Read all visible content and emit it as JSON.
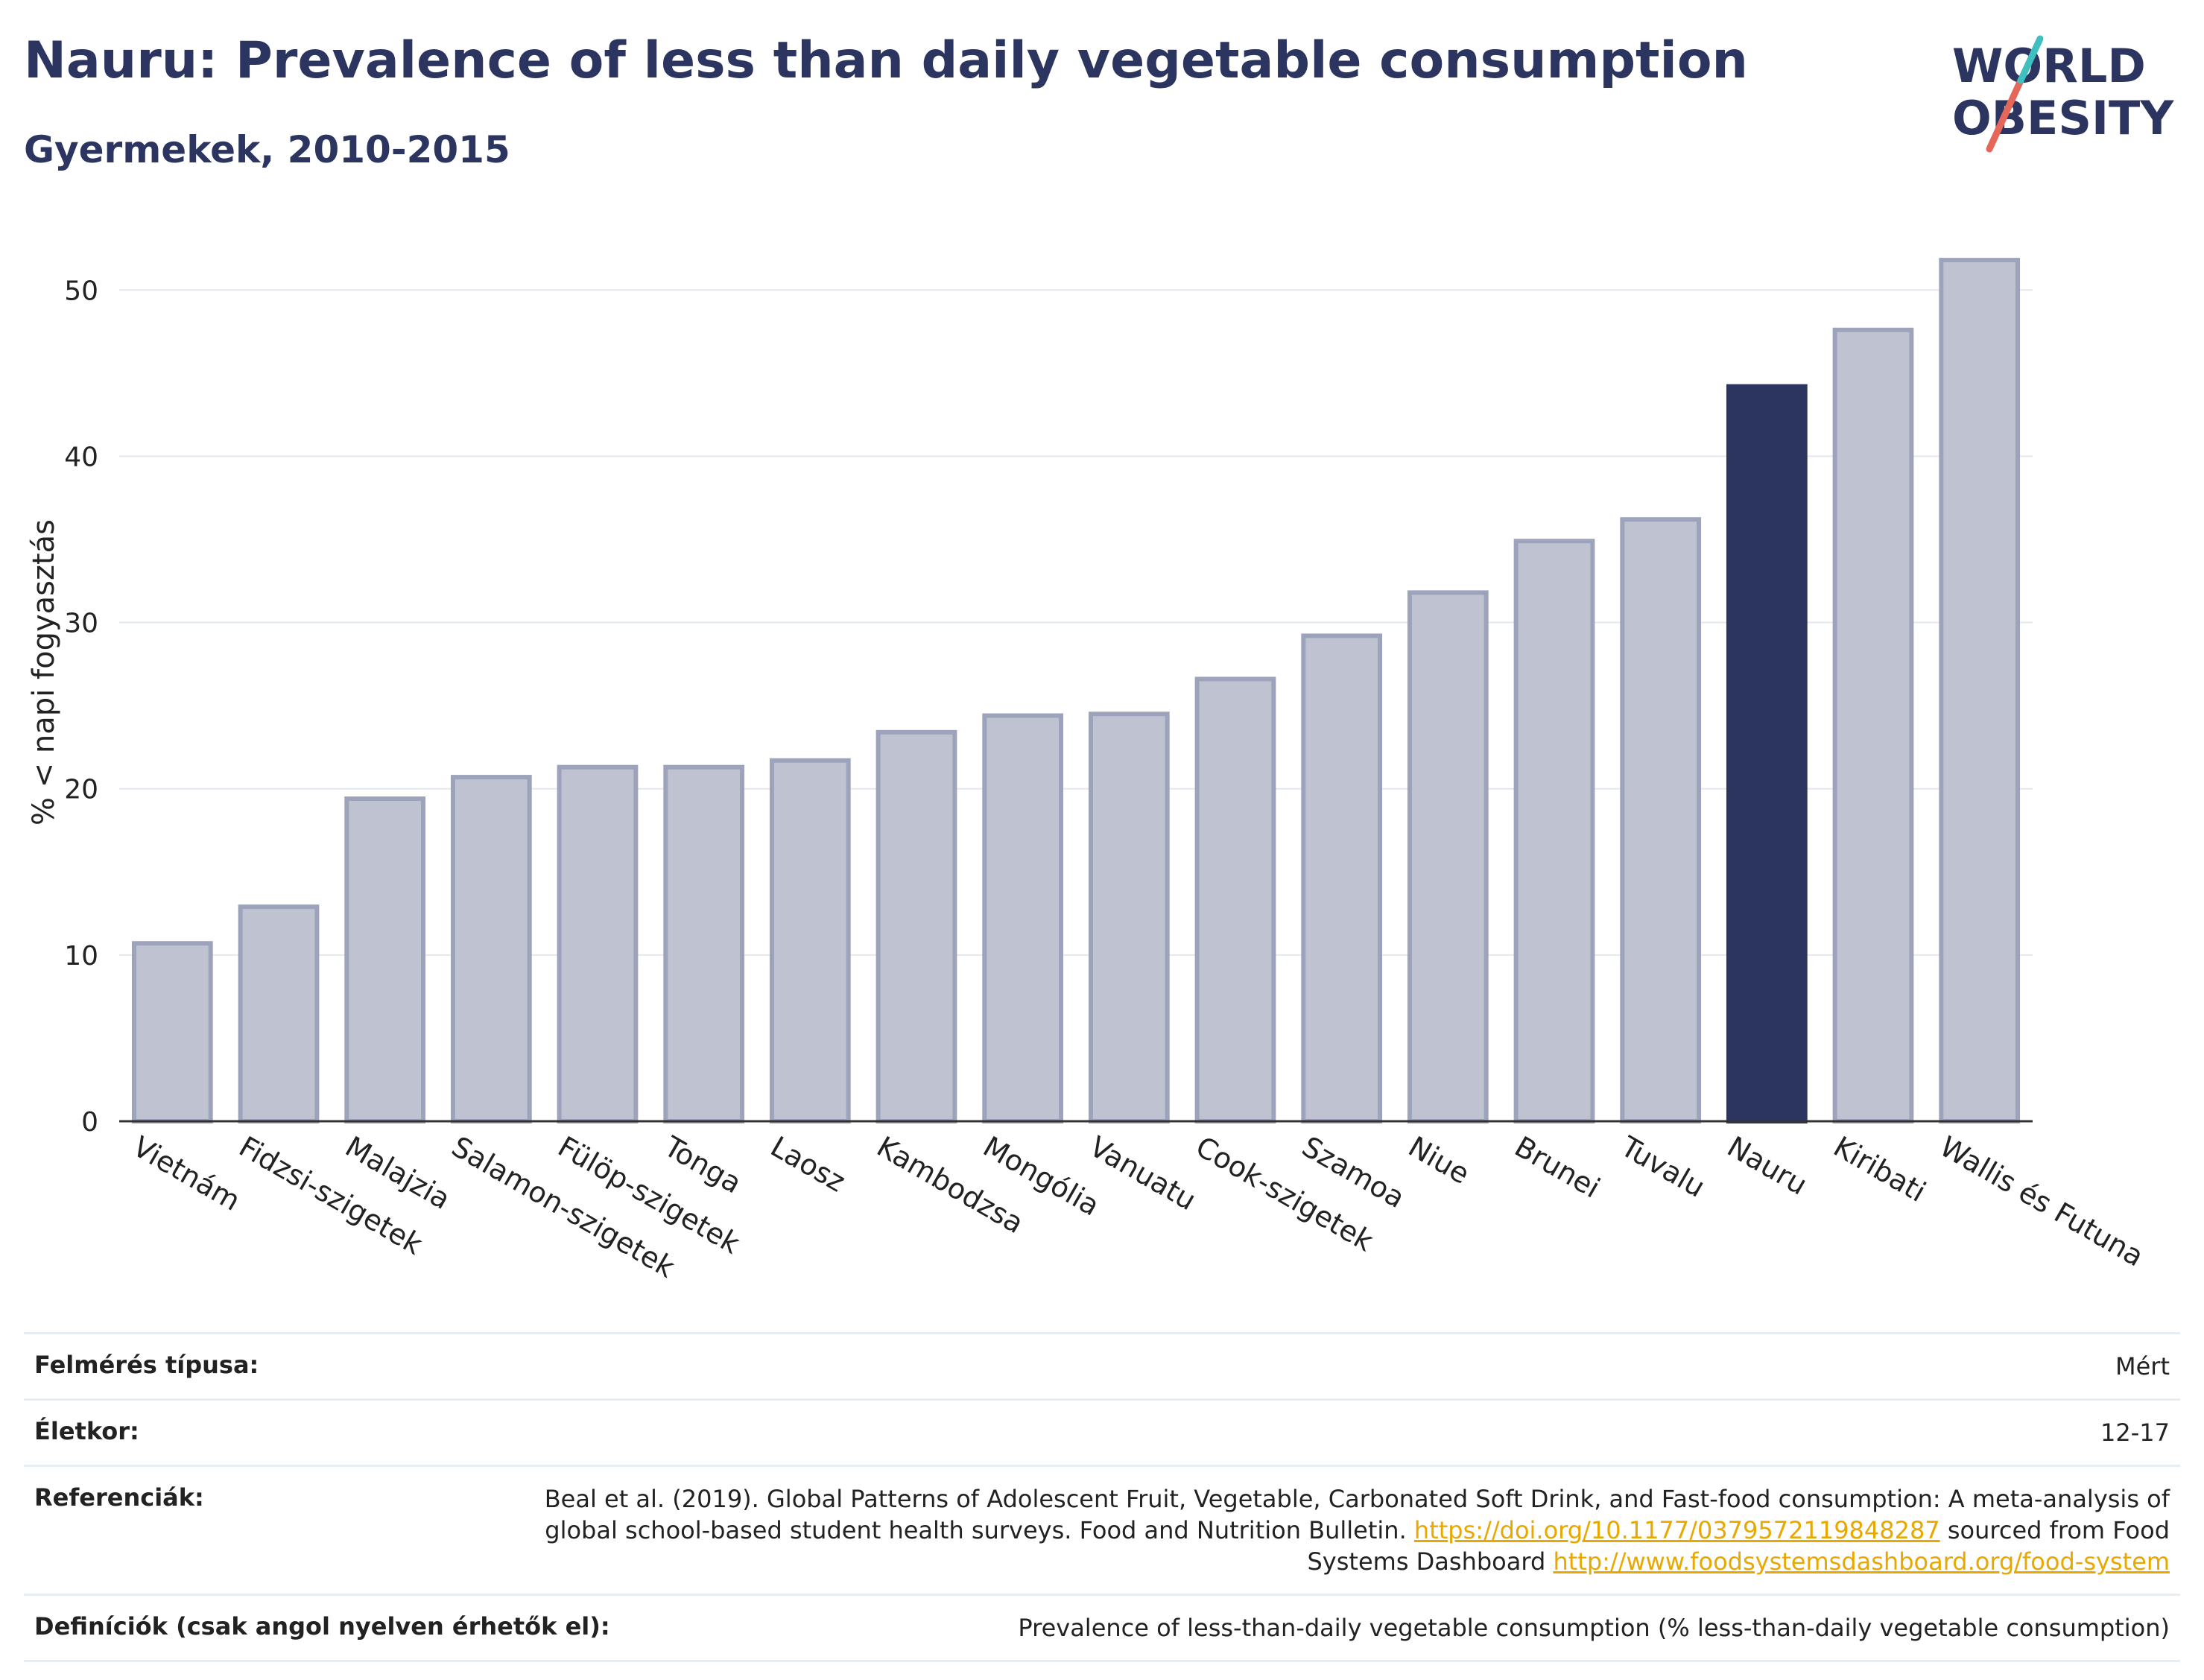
{
  "header": {
    "title": "Nauru: Prevalence of less than daily vegetable consumption",
    "subtitle": "Gyermekek, 2010-2015"
  },
  "logo": {
    "line1": "WORLD",
    "line2": "OBESITY",
    "accent_color": "#e5675a",
    "accent_color2": "#3fbfbf"
  },
  "chart_data": {
    "type": "bar",
    "title": "Nauru: Prevalence of less than daily vegetable consumption",
    "subtitle": "Gyermekek, 2010-2015",
    "ylabel": "% < napi fogyasztás",
    "xlabel": "",
    "ylim": [
      0,
      54
    ],
    "yticks": [
      0,
      10,
      20,
      30,
      40,
      50
    ],
    "grid": true,
    "categories": [
      "Vietnám",
      "Fidzsi-szigetek",
      "Malajzia",
      "Salamon-szigetek",
      "Fülöp-szigetek",
      "Tonga",
      "Laosz",
      "Kambodzsa",
      "Mongólia",
      "Vanuatu",
      "Cook-szigetek",
      "Szamoa",
      "Niue",
      "Brunei",
      "Tuvalu",
      "Nauru",
      "Kiribati",
      "Wallis és Futuna"
    ],
    "values": [
      10.7,
      12.9,
      19.4,
      20.7,
      21.3,
      21.3,
      21.7,
      23.4,
      24.4,
      24.5,
      26.6,
      29.2,
      31.8,
      34.9,
      36.2,
      44.2,
      47.6,
      51.8
    ],
    "highlight": "Nauru",
    "colors": {
      "bar": "#bfc3d1",
      "bar_edge": "#9da3bb",
      "highlight": "#2c3560"
    }
  },
  "meta": [
    {
      "key": "Felmérés típusa:",
      "value": "Mért"
    },
    {
      "key": "Életkor:",
      "value": "12-17"
    },
    {
      "key": "Referenciák:",
      "value_part1": "Beal et al. (2019). Global Patterns of Adolescent Fruit, Vegetable, Carbonated Soft Drink, and Fast-food consumption: A meta-analysis of global school-based student health surveys. Food and Nutrition Bulletin.",
      "link1": "https://doi.org/10.1177/0379572119848287",
      "value_part2": "sourced from Food Systems Dashboard",
      "link2": "http://www.foodsystemsdashboard.org/food-system"
    },
    {
      "key": "Definíciók (csak angol nyelven érhetők el):",
      "value": "Prevalence of less-than-daily vegetable consumption (% less-than-daily vegetable consumption)"
    }
  ]
}
